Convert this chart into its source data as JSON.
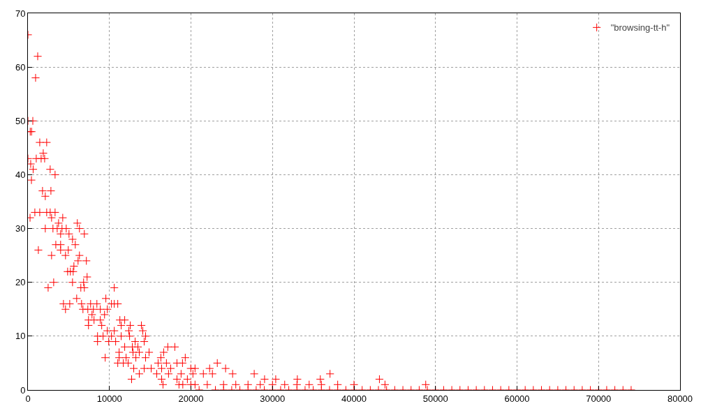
{
  "chart_data": {
    "type": "scatter",
    "xlim": [
      0,
      80000
    ],
    "ylim": [
      0,
      70
    ],
    "xticks": [
      0,
      10000,
      20000,
      30000,
      40000,
      50000,
      60000,
      70000,
      80000
    ],
    "yticks": [
      0,
      10,
      20,
      30,
      40,
      50,
      60,
      70
    ],
    "grid": true,
    "legend": "top right",
    "marker": "cross",
    "series": [
      {
        "name": "\"browsing-tt-h\"",
        "color": "#ff0000",
        "x": [
          0,
          1200,
          940,
          0,
          600,
          280,
          450,
          1450,
          2300,
          1880,
          0,
          1020,
          1620,
          2050,
          340,
          640,
          2730,
          3330,
          430,
          1790,
          2820,
          2130,
          260,
          850,
          1450,
          2300,
          2730,
          3330,
          2900,
          4270,
          3760,
          6060,
          2130,
          3070,
          3590,
          4180,
          4700,
          6320,
          4010,
          5040,
          6920,
          5470,
          3420,
          4010,
          5810,
          1280,
          4010,
          4950,
          2900,
          4610,
          6320,
          6150,
          7170,
          5640,
          4870,
          5210,
          5550,
          7260,
          3160,
          5470,
          6830,
          2480,
          6490,
          6920,
          10590,
          5980,
          9560,
          4360,
          5130,
          6580,
          7690,
          8460,
          10250,
          10590,
          11020,
          4610,
          6750,
          7350,
          8030,
          8880,
          9740,
          7860,
          9400,
          7430,
          8110,
          8880,
          11280,
          11870,
          7430,
          9050,
          11440,
          12550,
          13920,
          9740,
          10590,
          12380,
          14090,
          8540,
          9220,
          10250,
          11440,
          12470,
          14430,
          8540,
          9910,
          10760,
          13150,
          14260,
          11870,
          12810,
          13490,
          17160,
          18020,
          11190,
          12890,
          13660,
          14860,
          16650,
          9480,
          11190,
          12040,
          13240,
          14430,
          16310,
          19300,
          11020,
          11700,
          12300,
          15970,
          16990,
          18280,
          18960,
          23230,
          12980,
          14260,
          15120,
          16400,
          17510,
          19980,
          20500,
          22290,
          24250,
          13660,
          15800,
          17250,
          18790,
          20240,
          21520,
          22630,
          25110,
          27760,
          37060,
          12720,
          16400,
          18280,
          19560,
          29030,
          30400,
          33050,
          35870,
          43120,
          16570,
          18530,
          19980,
          20500,
          22000,
          24000,
          25500,
          27000,
          28500,
          30000,
          31500,
          33000,
          34500,
          36000,
          38000,
          40000,
          43800,
          48800,
          19000,
          21000,
          23000,
          24000,
          25000,
          26000,
          27000,
          28000,
          29000,
          30000,
          31000,
          32000,
          33000,
          34000,
          35000,
          36000,
          37000,
          38000,
          39000,
          40000,
          41000,
          42000,
          43000,
          44000,
          45000,
          46000,
          47000,
          48000,
          49000,
          50000,
          51000,
          52000,
          53000,
          54000,
          55000,
          56000,
          57000,
          58000,
          59000,
          60000,
          61000,
          62000,
          63000,
          64000,
          65000,
          66000,
          67000,
          68000,
          69000,
          70000,
          71000,
          72000,
          73000,
          74000
        ],
        "values": [
          66,
          62,
          58,
          50,
          50,
          48,
          48,
          46,
          46,
          44,
          43,
          43,
          43,
          43,
          42,
          41,
          41,
          40,
          39,
          37,
          37,
          36,
          32,
          33,
          33,
          33,
          33,
          33,
          32,
          32,
          31,
          31,
          30,
          30,
          30,
          30,
          30,
          30,
          29,
          29,
          29,
          28,
          27,
          27,
          27,
          26,
          26,
          26,
          25,
          25,
          25,
          24,
          24,
          23,
          22,
          22,
          22,
          21,
          20,
          20,
          20,
          19,
          19,
          19,
          19,
          17,
          17,
          16,
          16,
          16,
          16,
          16,
          16,
          16,
          16,
          15,
          15,
          15,
          15,
          15,
          15,
          14,
          14,
          13,
          13,
          13,
          13,
          13,
          12,
          12,
          12,
          12,
          12,
          11,
          11,
          11,
          11,
          10,
          10,
          10,
          10,
          10,
          10,
          9,
          9,
          9,
          9,
          9,
          8,
          8,
          8,
          8,
          8,
          7,
          7,
          7,
          7,
          7,
          6,
          6,
          6,
          6,
          6,
          6,
          6,
          5,
          5,
          5,
          5,
          5,
          5,
          5,
          5,
          4,
          4,
          4,
          4,
          4,
          4,
          4,
          4,
          4,
          3,
          3,
          3,
          3,
          3,
          3,
          3,
          3,
          3,
          3,
          2,
          2,
          2,
          2,
          2,
          2,
          2,
          2,
          2,
          1,
          1,
          1,
          1,
          1,
          1,
          1,
          1,
          1,
          1,
          1,
          1,
          1,
          1,
          1,
          1,
          1,
          1,
          1,
          0,
          0,
          0,
          0,
          0,
          0,
          0,
          0,
          0,
          0,
          0,
          0,
          0,
          0,
          0,
          0,
          0,
          0,
          0,
          0,
          0,
          0,
          0,
          0,
          0,
          0,
          0,
          0,
          0,
          0,
          0,
          0,
          0,
          0,
          0,
          0,
          0,
          0,
          0,
          0,
          0,
          0,
          0,
          0,
          0,
          0,
          0,
          0,
          0,
          0,
          0,
          0,
          0
        ]
      }
    ]
  }
}
